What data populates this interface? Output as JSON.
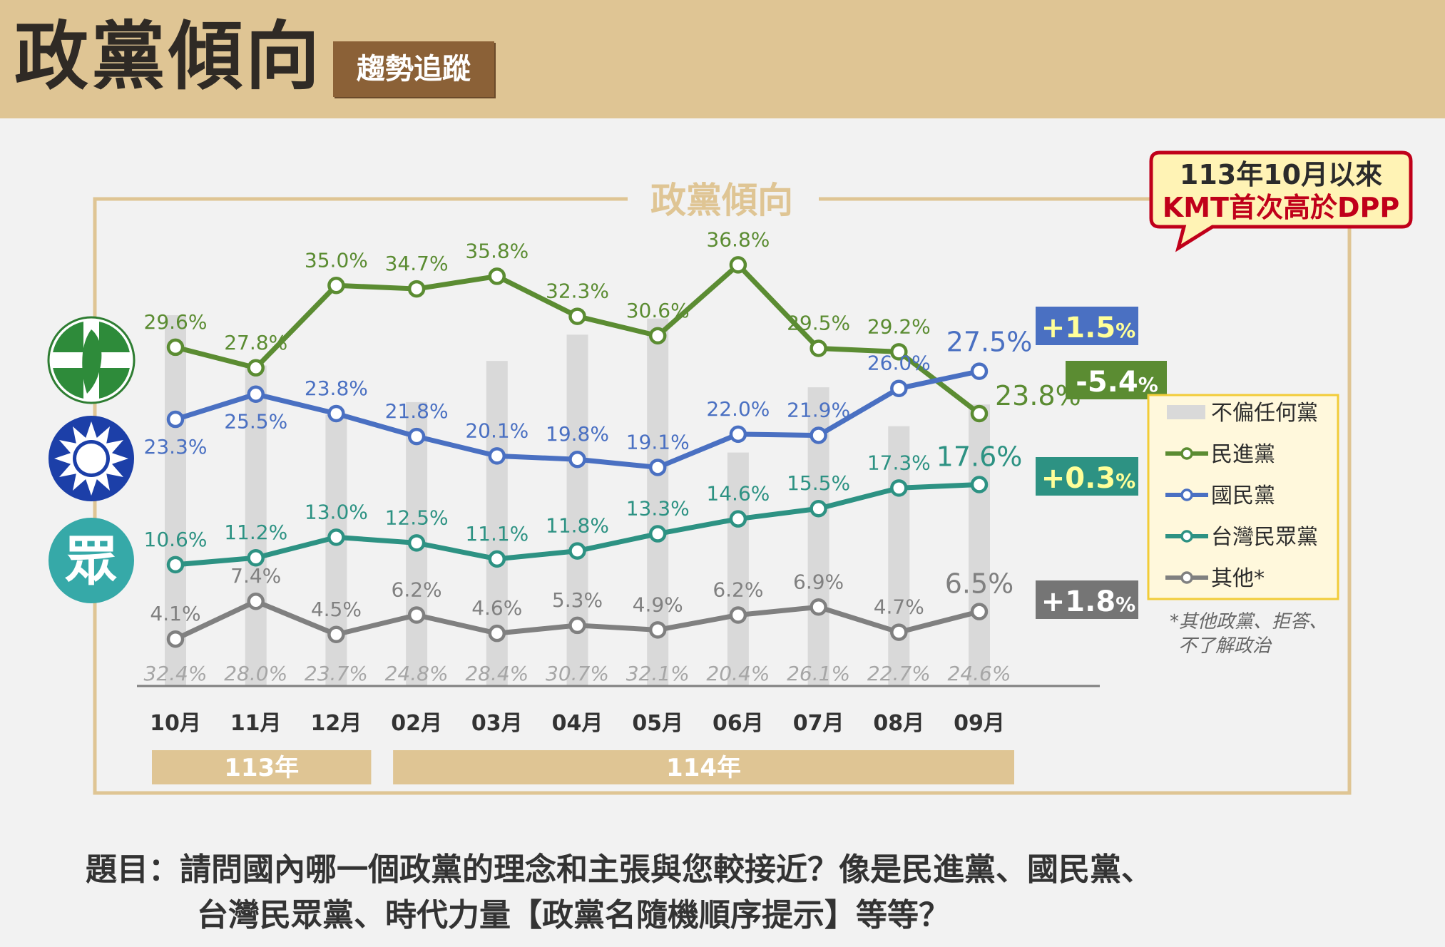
{
  "header": {
    "title": "政黨傾向",
    "tag": "趨勢追蹤"
  },
  "chart_title": "政黨傾向",
  "callout": {
    "line1": "113年10月以來",
    "line2": "KMT首次高於DPP"
  },
  "colors": {
    "dpp": "#5b8c32",
    "kmt": "#4a70c2",
    "tpp": "#2d9283",
    "other": "#808080",
    "neutral_bar": "#d9d9d9",
    "frame": "#dfc594",
    "callout_border": "#c0001a"
  },
  "changes": [
    {
      "series": "kmt",
      "label": "+1.5",
      "unit": "%"
    },
    {
      "series": "dpp",
      "label": "-5.4",
      "unit": "%"
    },
    {
      "series": "tpp",
      "label": "+0.3",
      "unit": "%"
    },
    {
      "series": "other",
      "label": "+1.8",
      "unit": "%"
    }
  ],
  "party_icons": [
    {
      "name": "dpp-logo-icon"
    },
    {
      "name": "kmt-logo-icon"
    },
    {
      "name": "tpp-logo-icon",
      "glyph": "眾"
    }
  ],
  "year_groups": [
    {
      "label": "113年",
      "months": 3
    },
    {
      "label": "114年",
      "months": 8
    }
  ],
  "footnote": {
    "line1": "*其他政黨、拒答、",
    "line2": "不了解政治"
  },
  "question": {
    "line1": "題目：請問國內哪一個政黨的理念和主張與您較接近？像是民進黨、國民黨、",
    "line2": "台灣民眾黨、時代力量【政黨名隨機順序提示】等等？"
  },
  "chart_data": {
    "type": "line",
    "title": "政黨傾向",
    "categories": [
      "10月",
      "11月",
      "12月",
      "02月",
      "03月",
      "04月",
      "05月",
      "06月",
      "07月",
      "08月",
      "09月"
    ],
    "ylim": [
      0,
      40
    ],
    "bar_series": {
      "name": "不偏任何黨",
      "values": [
        32.4,
        28.0,
        23.7,
        24.8,
        28.4,
        30.7,
        32.1,
        20.4,
        26.1,
        22.7,
        24.6
      ]
    },
    "series": [
      {
        "key": "dpp",
        "name": "民進黨",
        "values": [
          29.6,
          27.8,
          35.0,
          34.7,
          35.8,
          32.3,
          30.6,
          36.8,
          29.5,
          29.2,
          23.8
        ]
      },
      {
        "key": "kmt",
        "name": "國民黨",
        "values": [
          23.3,
          25.5,
          23.8,
          21.8,
          20.1,
          19.8,
          19.1,
          22.0,
          21.9,
          26.0,
          27.5
        ]
      },
      {
        "key": "tpp",
        "name": "台灣民眾黨",
        "values": [
          10.6,
          11.2,
          13.0,
          12.5,
          11.1,
          11.8,
          13.3,
          14.6,
          15.5,
          17.3,
          17.6
        ]
      },
      {
        "key": "other",
        "name": "其他*",
        "values": [
          4.1,
          7.4,
          4.5,
          6.2,
          4.6,
          5.3,
          4.9,
          6.2,
          6.9,
          4.7,
          6.5
        ]
      }
    ],
    "legend": [
      "不偏任何黨",
      "民進黨",
      "國民黨",
      "台灣民眾黨",
      "其他*"
    ]
  }
}
